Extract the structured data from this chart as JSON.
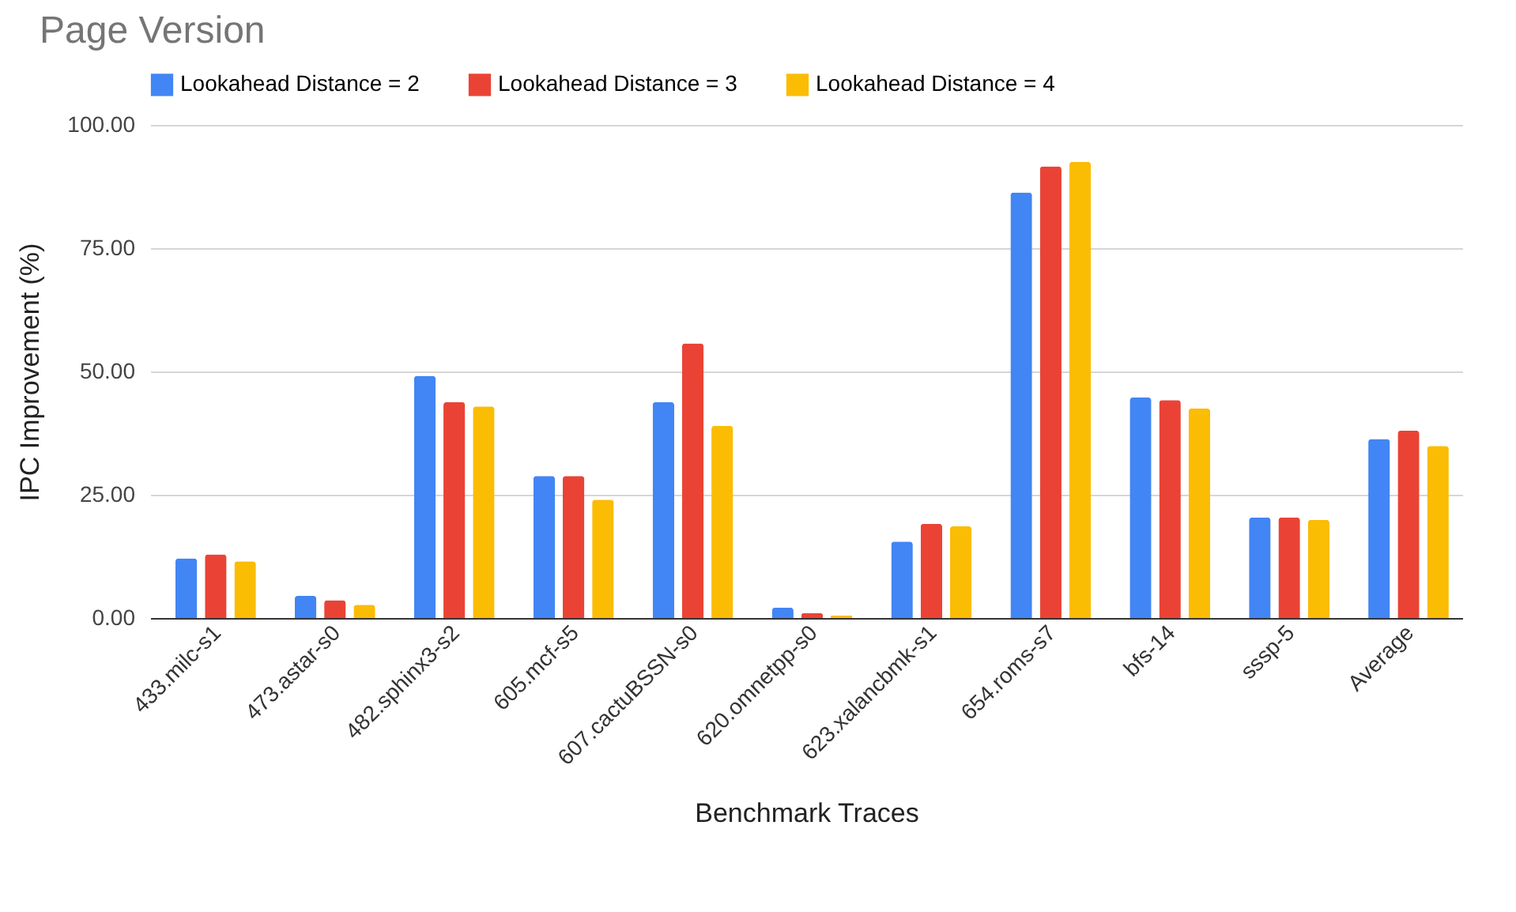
{
  "chart_data": {
    "type": "bar",
    "title": "Page Version",
    "xlabel": "Benchmark Traces",
    "ylabel": "IPC Improvement (%)",
    "categories": [
      "433.milc-s1",
      "473.astar-s0",
      "482.sphinx3-s2",
      "605.mcf-s5",
      "607.cactuBSSN-s0",
      "620.omnetpp-s0",
      "623.xalancbmk-s1",
      "654.roms-s7",
      "bfs-14",
      "sssp-5",
      "Average"
    ],
    "series": [
      {
        "name": "Lookahead Distance = 2",
        "color": "#4285f4",
        "values": [
          12.1,
          4.5,
          49.1,
          28.8,
          43.8,
          2.1,
          15.5,
          86.3,
          44.7,
          20.4,
          36.3
        ]
      },
      {
        "name": "Lookahead Distance = 3",
        "color": "#ea4335",
        "values": [
          12.9,
          3.6,
          43.8,
          28.8,
          55.7,
          1.0,
          19.1,
          91.6,
          44.2,
          20.4,
          38.0
        ]
      },
      {
        "name": "Lookahead Distance = 4",
        "color": "#fbbc04",
        "values": [
          11.5,
          2.7,
          42.9,
          24.0,
          39.0,
          0.5,
          18.6,
          92.5,
          42.5,
          19.9,
          34.9
        ]
      }
    ],
    "ylim": [
      0,
      100
    ],
    "yticks": [
      {
        "value": 0,
        "label": "0.00"
      },
      {
        "value": 25,
        "label": "25.00"
      },
      {
        "value": 50,
        "label": "50.00"
      },
      {
        "value": 75,
        "label": "75.00"
      },
      {
        "value": 100,
        "label": "100.00"
      }
    ],
    "grid": "y",
    "legend": "top"
  }
}
